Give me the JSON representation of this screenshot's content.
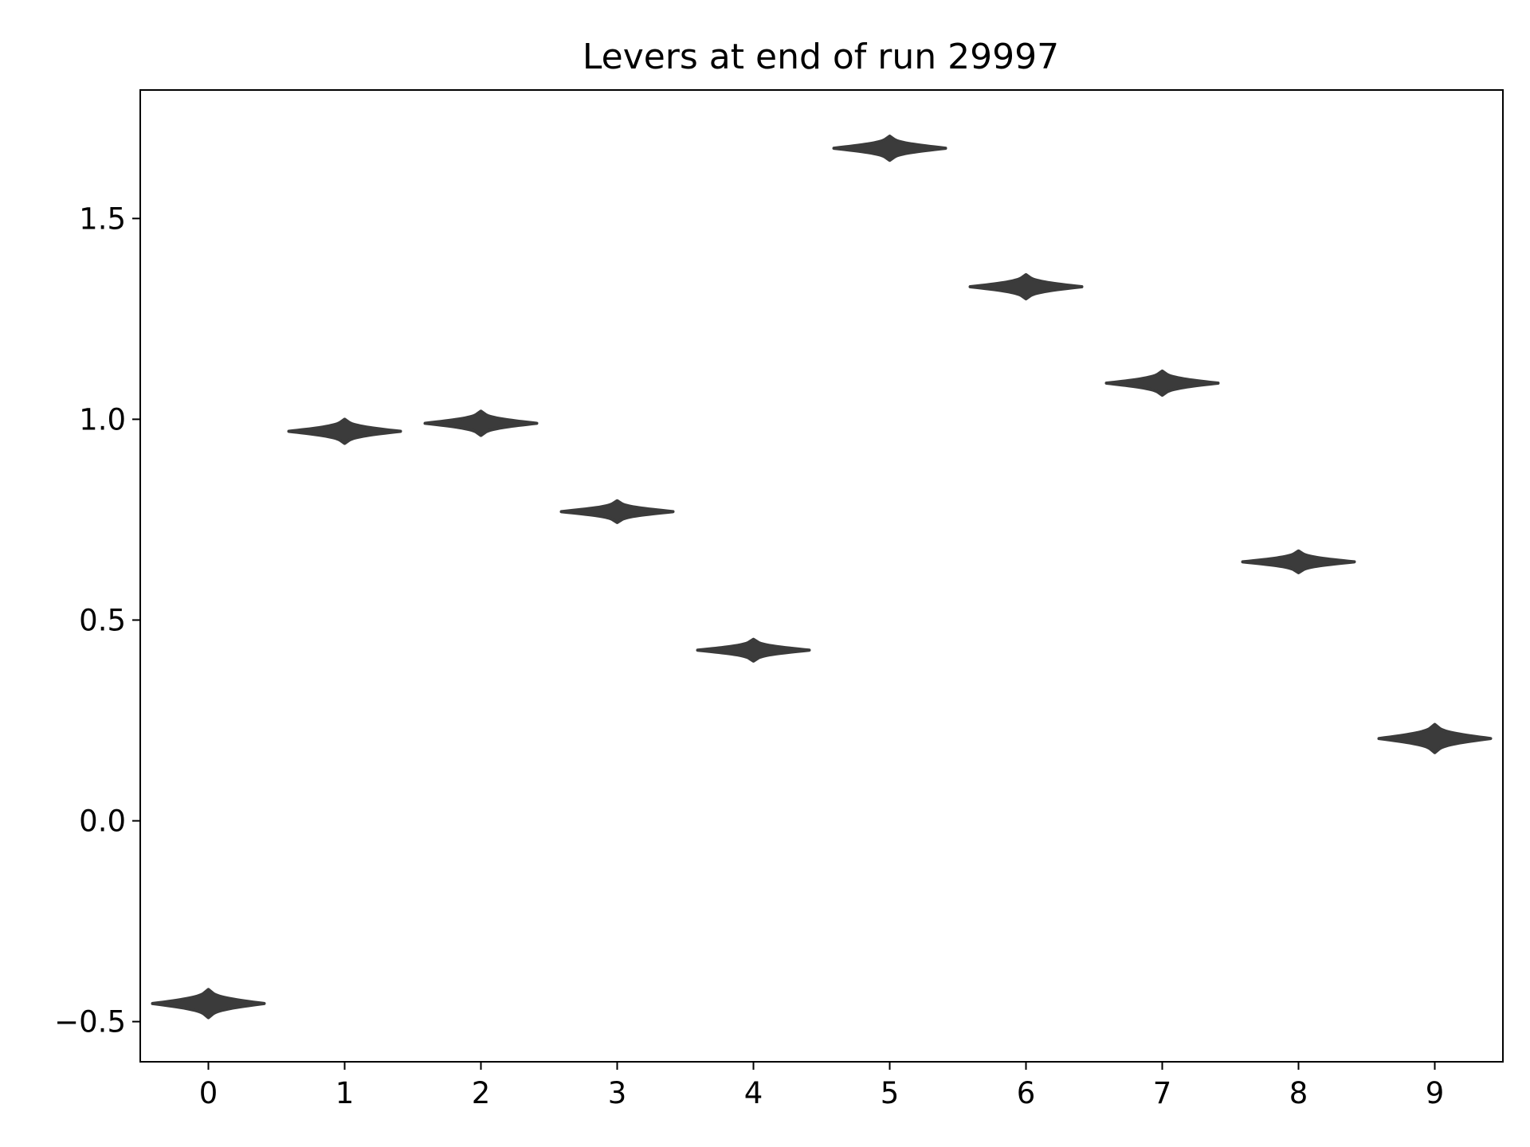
{
  "chart_data": {
    "type": "violin",
    "title": "Levers at end of run 29997",
    "xlabel": "",
    "ylabel": "",
    "categories": [
      "0",
      "1",
      "2",
      "3",
      "4",
      "5",
      "6",
      "7",
      "8",
      "9"
    ],
    "values": [
      -0.455,
      0.97,
      0.99,
      0.77,
      0.425,
      1.675,
      1.33,
      1.09,
      0.645,
      0.205
    ],
    "spread": [
      0.035,
      0.03,
      0.03,
      0.027,
      0.027,
      0.03,
      0.03,
      0.03,
      0.027,
      0.035
    ],
    "ylim": [
      -0.6,
      1.82
    ],
    "xlim": [
      -0.5,
      9.5
    ],
    "yticks": [
      -0.5,
      0.0,
      0.5,
      1.0,
      1.5
    ],
    "ytick_labels": [
      "−0.5",
      "0.0",
      "0.5",
      "1.0",
      "1.5"
    ],
    "grid": false,
    "colors": {
      "violin": "#3b3b3b",
      "axes": "#000000",
      "background": "#ffffff"
    }
  }
}
